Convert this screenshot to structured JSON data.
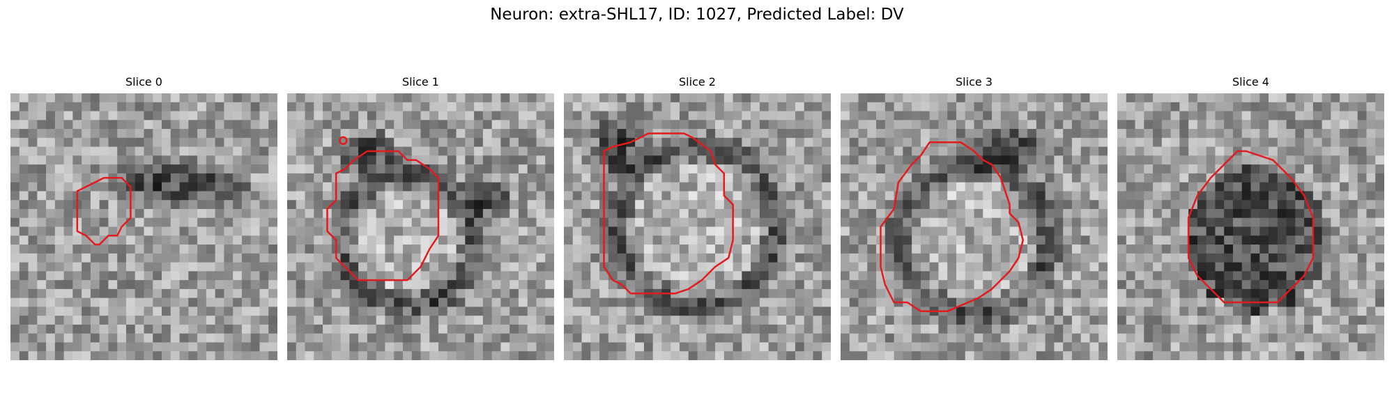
{
  "figure": {
    "title": "Neuron: extra-SHL17, ID: 1027, Predicted Label: DV"
  },
  "panels": [
    {
      "title": "Slice 0"
    },
    {
      "title": "Slice 1"
    },
    {
      "title": "Slice 2"
    },
    {
      "title": "Slice 3"
    },
    {
      "title": "Slice 4"
    }
  ],
  "colors": {
    "contour": "#e41a1c",
    "background": "#ffffff"
  }
}
